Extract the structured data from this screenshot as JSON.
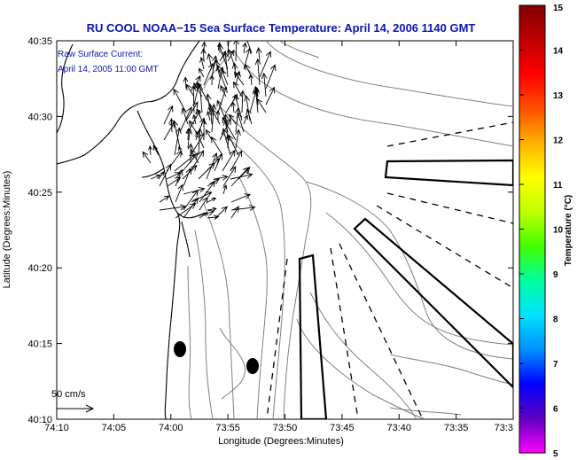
{
  "title": "RU COOL  NOAA−15  Sea Surface Temperature:  April 14, 2006 1140 GMT",
  "inset": {
    "line1": "Raw Surface Current:",
    "line2": "April 14, 2005 11:00 GMT"
  },
  "scale_label": "50 cm/s",
  "x_axis": {
    "label": "Longitude (Degrees:Minutes)",
    "ticks": [
      "74:10",
      "74:05",
      "74:00",
      "73:55",
      "73:50",
      "73:45",
      "73:40",
      "73:35",
      "73:3"
    ]
  },
  "y_axis": {
    "label": "Latitude (Degrees:Minutes)",
    "ticks": [
      "40:35",
      "40:30",
      "40:25",
      "40:20",
      "40:15",
      "40:10"
    ]
  },
  "colorbar": {
    "label": "Temperature (°C)",
    "ticks": [
      "15",
      "14",
      "13",
      "12",
      "11",
      "10",
      "9",
      "8",
      "7",
      "6",
      "5"
    ],
    "colors": [
      "#ff00ff",
      "#6000c0",
      "#0000ff",
      "#0090ff",
      "#00e0ff",
      "#00ffa0",
      "#40ff00",
      "#c0ff00",
      "#ffff00",
      "#ffb000",
      "#ff5000",
      "#ff0000",
      "#c00000",
      "#800000"
    ]
  }
}
